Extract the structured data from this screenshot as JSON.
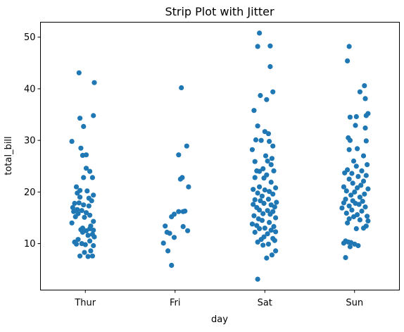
{
  "chart_data": {
    "type": "scatter",
    "title": "Strip Plot with Jitter",
    "xlabel": "day",
    "ylabel": "total_bill",
    "categories": [
      "Thur",
      "Fri",
      "Sat",
      "Sun"
    ],
    "ylim": [
      1.0,
      52.9
    ],
    "yticks": [
      10,
      20,
      30,
      40,
      50
    ],
    "grid": false,
    "point_color": "#1f77b4",
    "series": [
      {
        "category": "Thur",
        "points": [
          [
            -0.15,
            29.8
          ],
          [
            -0.07,
            43.1
          ],
          [
            0.1,
            41.2
          ],
          [
            0.09,
            34.8
          ],
          [
            -0.06,
            34.3
          ],
          [
            -0.02,
            32.7
          ],
          [
            -0.05,
            28.5
          ],
          [
            -0.03,
            27.1
          ],
          [
            0.01,
            27.2
          ],
          [
            0.01,
            24.6
          ],
          [
            0.05,
            24.0
          ],
          [
            0.08,
            22.8
          ],
          [
            -0.02,
            22.8
          ],
          [
            -0.1,
            21.0
          ],
          [
            -0.06,
            20.3
          ],
          [
            0.02,
            20.2
          ],
          [
            -0.09,
            19.8
          ],
          [
            0.09,
            19.4
          ],
          [
            -0.06,
            19.0
          ],
          [
            0.04,
            18.8
          ],
          [
            0.07,
            18.3
          ],
          [
            -0.12,
            17.8
          ],
          [
            -0.07,
            17.9
          ],
          [
            -0.02,
            17.5
          ],
          [
            0.04,
            17.3
          ],
          [
            -0.14,
            17.0
          ],
          [
            -0.09,
            16.6
          ],
          [
            -0.13,
            16.2
          ],
          [
            -0.04,
            16.4
          ],
          [
            0.01,
            16.0
          ],
          [
            -0.08,
            15.8
          ],
          [
            0.05,
            15.5
          ],
          [
            -0.11,
            15.2
          ],
          [
            -0.01,
            15.1
          ],
          [
            0.09,
            14.3
          ],
          [
            -0.15,
            14.0
          ],
          [
            0.06,
            13.4
          ],
          [
            -0.03,
            13.0
          ],
          [
            0.05,
            12.9
          ],
          [
            0.01,
            12.5
          ],
          [
            0.09,
            12.6
          ],
          [
            -0.05,
            12.7
          ],
          [
            -0.03,
            12.2
          ],
          [
            0.08,
            11.8
          ],
          [
            0.03,
            11.6
          ],
          [
            0.1,
            11.3
          ],
          [
            -0.08,
            10.8
          ],
          [
            -0.12,
            10.3
          ],
          [
            0.05,
            10.5
          ],
          [
            -0.04,
            10.0
          ],
          [
            0.0,
            9.8
          ],
          [
            -0.1,
            9.9
          ],
          [
            0.09,
            9.6
          ],
          [
            0.06,
            8.6
          ],
          [
            -0.01,
            8.3
          ],
          [
            -0.06,
            7.6
          ],
          [
            0.03,
            7.5
          ],
          [
            0.08,
            7.6
          ]
        ]
      },
      {
        "category": "Fri",
        "points": [
          [
            0.07,
            40.2
          ],
          [
            0.13,
            28.9
          ],
          [
            0.04,
            27.2
          ],
          [
            0.08,
            22.8
          ],
          [
            0.06,
            22.5
          ],
          [
            0.15,
            21.0
          ],
          [
            0.04,
            16.2
          ],
          [
            0.11,
            16.3
          ],
          [
            0.09,
            16.2
          ],
          [
            -0.01,
            15.7
          ],
          [
            -0.04,
            15.2
          ],
          [
            -0.11,
            13.4
          ],
          [
            0.09,
            13.3
          ],
          [
            -0.09,
            12.2
          ],
          [
            0.14,
            12.5
          ],
          [
            -0.06,
            12.0
          ],
          [
            -0.01,
            11.2
          ],
          [
            -0.13,
            10.1
          ],
          [
            -0.08,
            8.6
          ],
          [
            -0.04,
            5.8
          ]
        ]
      },
      {
        "category": "Sat",
        "points": [
          [
            -0.06,
            50.8
          ],
          [
            -0.08,
            48.2
          ],
          [
            0.06,
            48.3
          ],
          [
            0.06,
            44.3
          ],
          [
            0.09,
            39.4
          ],
          [
            -0.05,
            38.7
          ],
          [
            0.02,
            37.9
          ],
          [
            -0.12,
            35.8
          ],
          [
            -0.08,
            32.8
          ],
          [
            0.0,
            31.7
          ],
          [
            0.04,
            31.3
          ],
          [
            -0.1,
            30.1
          ],
          [
            -0.04,
            30.0
          ],
          [
            0.05,
            29.8
          ],
          [
            0.09,
            28.9
          ],
          [
            -0.14,
            28.2
          ],
          [
            0.01,
            27.0
          ],
          [
            0.08,
            26.5
          ],
          [
            -0.11,
            25.9
          ],
          [
            0.03,
            26.0
          ],
          [
            0.07,
            25.3
          ],
          [
            -0.02,
            24.5
          ],
          [
            -0.09,
            24.1
          ],
          [
            -0.06,
            24.0
          ],
          [
            0.1,
            24.1
          ],
          [
            0.02,
            23.3
          ],
          [
            -0.11,
            22.8
          ],
          [
            -0.01,
            22.7
          ],
          [
            0.07,
            21.9
          ],
          [
            -0.06,
            21.0
          ],
          [
            0.12,
            20.8
          ],
          [
            -0.13,
            20.5
          ],
          [
            0.0,
            20.4
          ],
          [
            0.05,
            20.1
          ],
          [
            -0.08,
            19.8
          ],
          [
            0.09,
            19.6
          ],
          [
            -0.03,
            19.2
          ],
          [
            -0.11,
            18.5
          ],
          [
            0.04,
            18.6
          ],
          [
            0.13,
            18.0
          ],
          [
            -0.05,
            18.3
          ],
          [
            -0.13,
            17.6
          ],
          [
            -0.01,
            17.8
          ],
          [
            0.07,
            17.5
          ],
          [
            0.11,
            17.1
          ],
          [
            -0.09,
            17.0
          ],
          [
            -0.06,
            16.5
          ],
          [
            0.03,
            16.4
          ],
          [
            0.09,
            16.2
          ],
          [
            -0.02,
            15.8
          ],
          [
            0.06,
            15.7
          ],
          [
            -0.12,
            15.4
          ],
          [
            0.12,
            15.0
          ],
          [
            -0.07,
            14.8
          ],
          [
            -0.03,
            14.5
          ],
          [
            0.05,
            14.1
          ],
          [
            -0.14,
            13.8
          ],
          [
            -0.09,
            13.5
          ],
          [
            0.1,
            13.3
          ],
          [
            0.0,
            13.0
          ],
          [
            -0.06,
            12.9
          ],
          [
            0.07,
            12.6
          ],
          [
            0.12,
            12.3
          ],
          [
            -0.11,
            12.2
          ],
          [
            0.03,
            11.9
          ],
          [
            -0.01,
            11.3
          ],
          [
            0.09,
            11.0
          ],
          [
            -0.04,
            10.8
          ],
          [
            0.11,
            10.6
          ],
          [
            -0.08,
            10.3
          ],
          [
            0.04,
            9.9
          ],
          [
            -0.02,
            9.7
          ],
          [
            0.12,
            8.6
          ],
          [
            0.08,
            7.8
          ],
          [
            0.02,
            7.2
          ],
          [
            -0.08,
            3.1
          ]
        ]
      },
      {
        "category": "Sun",
        "points": [
          [
            -0.06,
            48.2
          ],
          [
            -0.08,
            45.4
          ],
          [
            0.11,
            40.6
          ],
          [
            0.06,
            39.4
          ],
          [
            0.12,
            38.1
          ],
          [
            -0.05,
            34.5
          ],
          [
            0.02,
            34.6
          ],
          [
            0.15,
            35.2
          ],
          [
            0.13,
            34.8
          ],
          [
            0.01,
            32.9
          ],
          [
            0.12,
            32.4
          ],
          [
            -0.07,
            30.5
          ],
          [
            -0.05,
            30.0
          ],
          [
            0.13,
            29.9
          ],
          [
            -0.06,
            28.2
          ],
          [
            0.03,
            28.4
          ],
          [
            0.1,
            27.0
          ],
          [
            -0.01,
            26.0
          ],
          [
            0.14,
            25.3
          ],
          [
            0.02,
            25.0
          ],
          [
            -0.08,
            24.3
          ],
          [
            0.08,
            24.1
          ],
          [
            -0.11,
            23.7
          ],
          [
            -0.03,
            23.6
          ],
          [
            0.13,
            23.2
          ],
          [
            0.04,
            23.0
          ],
          [
            -0.06,
            22.5
          ],
          [
            0.1,
            22.1
          ],
          [
            -0.02,
            21.7
          ],
          [
            0.07,
            21.3
          ],
          [
            -0.12,
            21.0
          ],
          [
            0.15,
            20.6
          ],
          [
            0.03,
            20.8
          ],
          [
            -0.09,
            20.2
          ],
          [
            0.0,
            20.0
          ],
          [
            0.11,
            19.6
          ],
          [
            -0.04,
            19.4
          ],
          [
            0.06,
            19.0
          ],
          [
            -0.1,
            18.6
          ],
          [
            -0.02,
            18.3
          ],
          [
            0.09,
            18.2
          ],
          [
            -0.12,
            17.9
          ],
          [
            0.01,
            17.8
          ],
          [
            0.05,
            17.6
          ],
          [
            -0.06,
            17.3
          ],
          [
            0.12,
            17.1
          ],
          [
            -0.14,
            16.9
          ],
          [
            -0.03,
            16.5
          ],
          [
            0.08,
            16.3
          ],
          [
            -0.09,
            15.9
          ],
          [
            0.03,
            15.6
          ],
          [
            0.14,
            15.3
          ],
          [
            -0.01,
            15.2
          ],
          [
            -0.06,
            14.8
          ],
          [
            0.06,
            14.6
          ],
          [
            0.15,
            14.4
          ],
          [
            -0.08,
            14.0
          ],
          [
            0.13,
            13.4
          ],
          [
            0.1,
            13.0
          ],
          [
            0.02,
            12.9
          ],
          [
            -0.1,
            10.5
          ],
          [
            -0.07,
            10.3
          ],
          [
            -0.04,
            10.2
          ],
          [
            -0.12,
            10.1
          ],
          [
            0.0,
            9.9
          ],
          [
            0.04,
            9.6
          ],
          [
            -0.05,
            9.4
          ],
          [
            -0.1,
            7.3
          ]
        ]
      }
    ]
  }
}
